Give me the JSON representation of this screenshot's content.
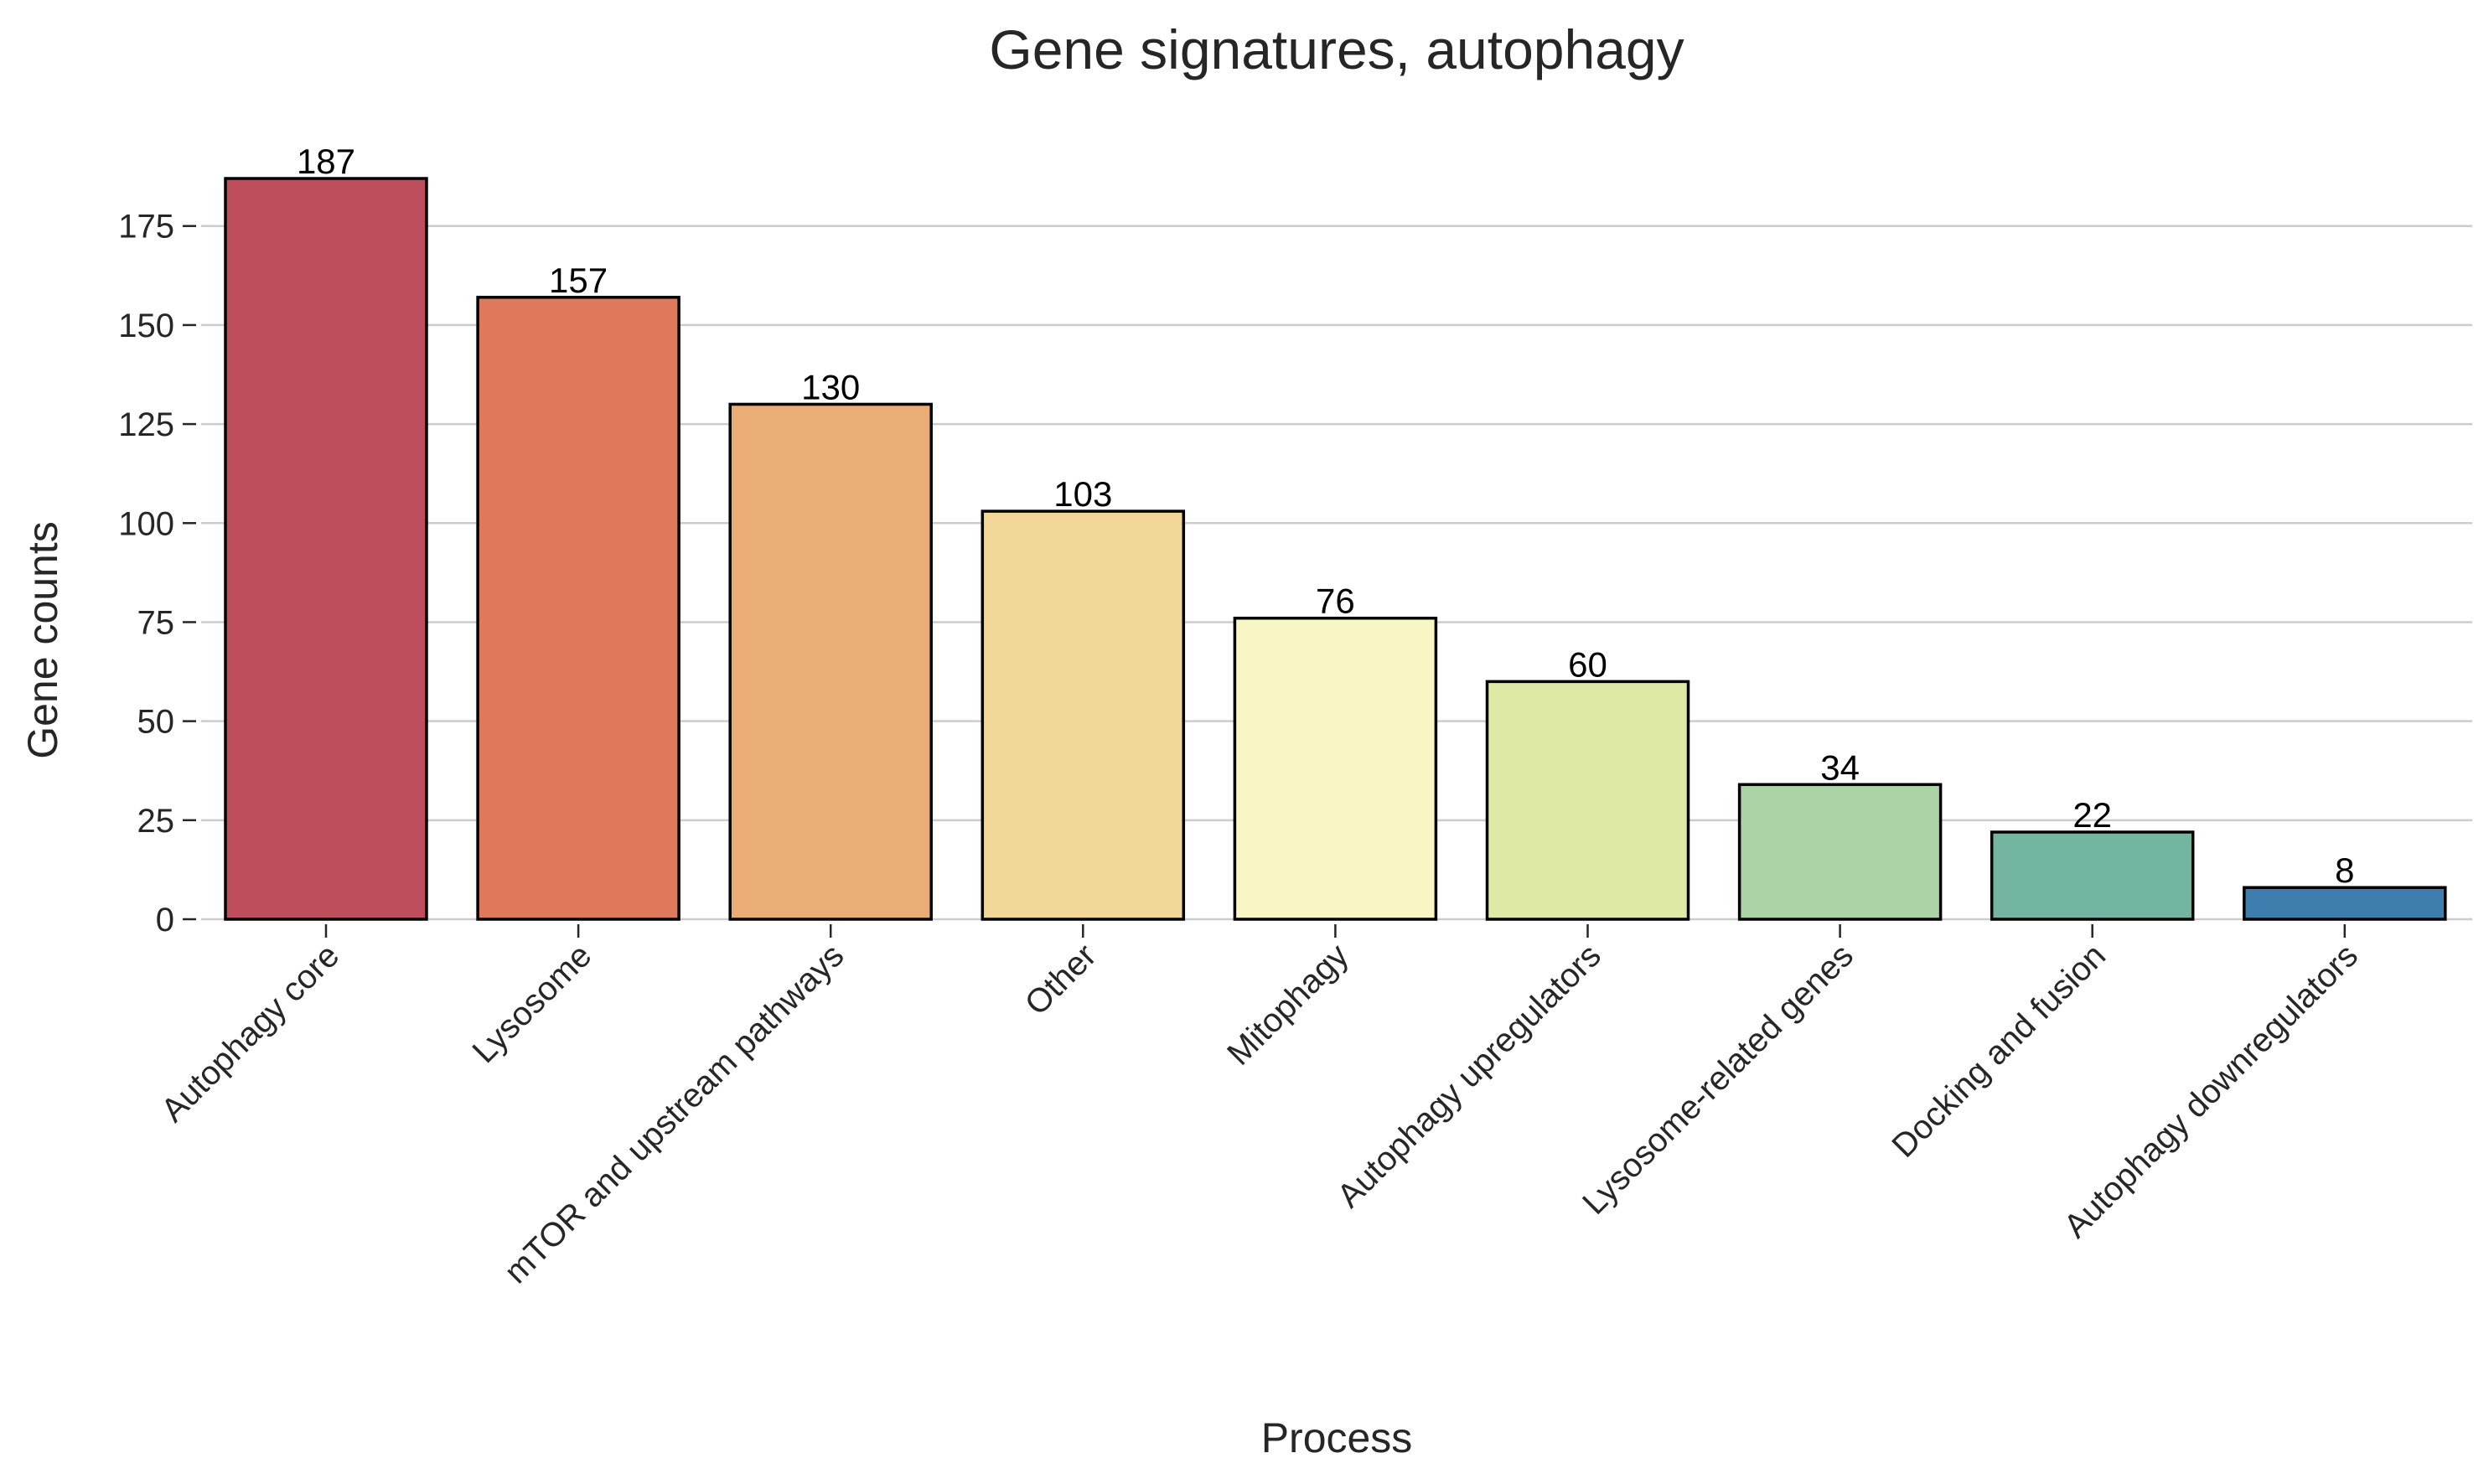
{
  "chart_data": {
    "type": "bar",
    "title": "Gene signatures, autophagy",
    "xlabel": "Process",
    "ylabel": "Gene counts",
    "categories": [
      "Autophagy core",
      "Lysosome",
      "mTOR and upstream pathways",
      "Other",
      "Mitophagy",
      "Autophagy upregulators",
      "Lysosome-related genes",
      "Docking and fusion",
      "Autophagy downregulators"
    ],
    "values": [
      187,
      157,
      130,
      103,
      76,
      60,
      34,
      22,
      8
    ],
    "colors": [
      "#be4e5c",
      "#df795c",
      "#e9ad75",
      "#f1d898",
      "#f8f6c5",
      "#dde9a4",
      "#abd3a6",
      "#74b5a2",
      "#3e7eaf"
    ],
    "yticks": [
      0,
      25,
      50,
      75,
      100,
      125,
      150,
      175
    ],
    "ylim": [
      0,
      196
    ],
    "grid": true
  }
}
